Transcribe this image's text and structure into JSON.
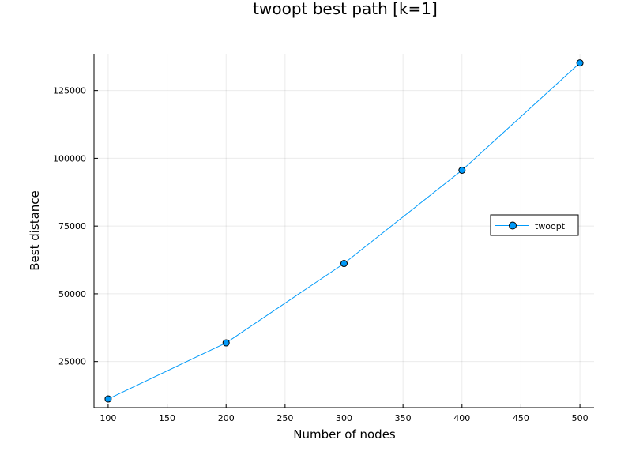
{
  "chart_data": {
    "type": "line",
    "title": "twoopt best path [k=1]",
    "xlabel": "Number of nodes",
    "ylabel": "Best distance",
    "xlim": [
      88,
      512
    ],
    "ylim": [
      8000,
      138600
    ],
    "x_ticks": [
      100,
      150,
      200,
      250,
      300,
      350,
      400,
      450,
      500
    ],
    "x_tick_labels": [
      "100",
      "150",
      "200",
      "250",
      "300",
      "350",
      "400",
      "450",
      "500"
    ],
    "y_ticks": [
      25000,
      50000,
      75000,
      100000,
      125000
    ],
    "y_tick_labels": [
      "25000",
      "50000",
      "75000",
      "100000",
      "125000"
    ],
    "grid": true,
    "legend_position": "right",
    "series": [
      {
        "name": "twoopt",
        "color": "#009af9",
        "marker": "circle",
        "x": [
          100,
          200,
          300,
          400,
          500
        ],
        "y": [
          11200,
          31900,
          61200,
          95600,
          135200
        ]
      }
    ]
  }
}
